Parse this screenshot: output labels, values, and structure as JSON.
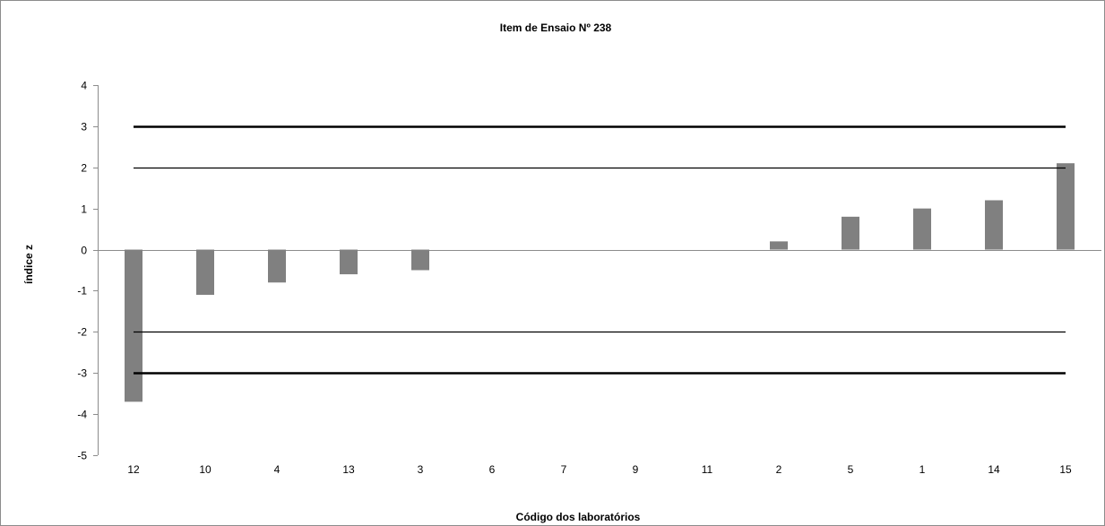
{
  "chart_data": {
    "type": "bar",
    "title": "Item de Ensaio Nº 238",
    "xlabel": "Código dos laboratórios",
    "ylabel": "índice z",
    "categories": [
      "12",
      "10",
      "4",
      "13",
      "3",
      "6",
      "7",
      "9",
      "11",
      "2",
      "5",
      "1",
      "14",
      "15"
    ],
    "values": [
      -3.7,
      -1.1,
      -0.8,
      -0.6,
      -0.5,
      0,
      0,
      0,
      0,
      0.2,
      0.8,
      1.0,
      1.2,
      2.1
    ],
    "ylim": [
      -5,
      4
    ],
    "yticks": [
      "4",
      "3",
      "2",
      "1",
      "0",
      "-1",
      "-2",
      "-3",
      "-4",
      "-5"
    ],
    "reference_lines": [
      {
        "value": 3,
        "style": "thick"
      },
      {
        "value": 2,
        "style": "thin"
      },
      {
        "value": -2,
        "style": "thin"
      },
      {
        "value": -3,
        "style": "thick"
      }
    ],
    "bar_color": "#808080",
    "grid": false,
    "legend": "none"
  }
}
